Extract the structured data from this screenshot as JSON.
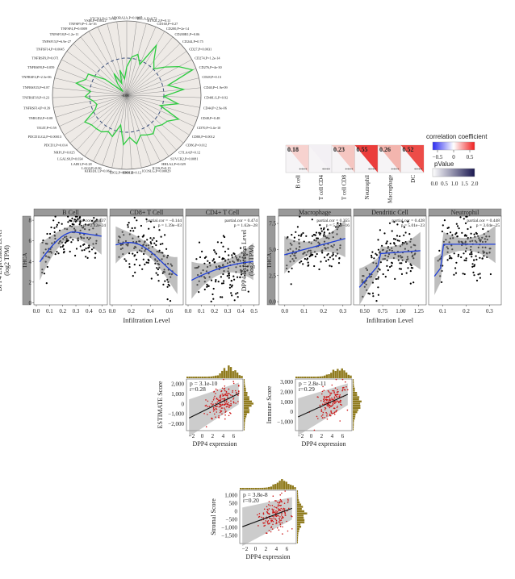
{
  "radar": {
    "center": "-0.08",
    "labels": [
      "ADORA2A,P=0.0097",
      "BTLA,P=0.73",
      "BTN2L2,P=0.11",
      "CD160,P=0.27",
      "CD200,P=2e-14",
      "CD200R1,P=0.06",
      "CD244,P=0.75",
      "CD27,P=0.0031",
      "CD274,P=1.2e-14",
      "CD276,P=4e-30",
      "CD28,P=0.13",
      "CD40,P=1.9e-09",
      "CD40LG,P=0.92",
      "CD44,P=2.9e-06",
      "CD48,P=0.48",
      "CD70,P=3.4e-10",
      "CD80,P=0.0012",
      "CD86,P=0.012",
      "CTLA4,P=0.12",
      "SUVCR2,P=0.0081",
      "HHLA2,P=0.029",
      "ICOS,P=0.15",
      "ICOSLG,P=0.00029",
      "IDO1,P=0.12",
      "IDO2,P=0.00012",
      "KIR3DL1,P=0.064",
      "LAG3,P=0.06",
      "LAIR1,P=0.28",
      "LGALS9,P=0.034",
      "NRP1,P=0.025",
      "PDCD1,P=0.014",
      "PDCD1LG2,P=0.00013",
      "TIGIT,P=0.59",
      "TMIGD2,P=0.08",
      "TNFRSF14,P=0.39",
      "TNFRSF18,P=0.23",
      "TNFRSF25,P=0.87",
      "TNFRSF4,P=2.3e-06",
      "TNFRSF8,P=0.059",
      "TNFRSF9,P=0.071",
      "TNFSF14,P=0.0045",
      "TNFSF15,P=6.9e-27",
      "TNFSF18,P=1.2e-11",
      "TNFSF4,P=0.0009",
      "TNFSF9,P=1.3e-16",
      "VSIR,P=0.0022",
      "VTCN1,P=2.7e-12"
    ],
    "values": [
      -0.12,
      0.02,
      0.07,
      -0.05,
      0.28,
      0.09,
      0.01,
      0.14,
      0.3,
      0.45,
      0.07,
      0.27,
      0,
      0.2,
      -0.03,
      0.27,
      0.15,
      0.12,
      0.07,
      0.13,
      0.1,
      0.07,
      0.17,
      0.07,
      0.17,
      -0.09,
      0.09,
      0.05,
      0.1,
      0.11,
      0.12,
      0.17,
      -0.03,
      -0.08,
      -0.04,
      0.06,
      -0.01,
      0.2,
      0.09,
      0.09,
      -0.14,
      -0.43,
      -0.3,
      -0.16,
      -0.33,
      -0.15,
      -0.28
    ],
    "scale_min": -0.5,
    "scale_max": 0.5,
    "line_color": "#2ecc40"
  },
  "heatmap": {
    "cells": [
      {
        "label": "B cell",
        "value": "0.18",
        "stars": "****",
        "color": "#f7d2cf"
      },
      {
        "label": "T cell CD4",
        "value": "",
        "stars": "****",
        "color": "#f3f0f4"
      },
      {
        "label": "T cell CD8",
        "value": "0.23",
        "stars": "****",
        "color": "#f5c6c1"
      },
      {
        "label": "Neutrophil",
        "value": "0.55",
        "stars": "****",
        "color": "#eb3d3b"
      },
      {
        "label": "Macrophage",
        "value": "0.26",
        "stars": "****",
        "color": "#f3b5ae"
      },
      {
        "label": "DC",
        "value": "0.52",
        "stars": "****",
        "color": "#ec4c48"
      }
    ],
    "legend_title": "correlation coefficient",
    "legend_ticks": [
      "−0.5",
      "0",
      "0.5"
    ],
    "pvalue_title": "pValue",
    "pvalue_ticks": [
      "0.0",
      "0.5",
      "1.0",
      "1.5",
      "2.0"
    ]
  },
  "timer": {
    "ylabel": "DPP4 Expression Level\n(log2 TPM)",
    "ylabel_l1": "DPP4 Expression Level",
    "ylabel_l2": "(log2 TPM)",
    "xlabel": "Infiltration Level",
    "cancer": "THCA",
    "left": {
      "yticks": [
        "0",
        "2",
        "4",
        "6",
        "8"
      ],
      "panels": [
        {
          "title": "B Cell",
          "cor": "partial.cor = 0.437",
          "p": "p = 2.42e-24",
          "xticks": [
            "0.0",
            "0.1",
            "0.2",
            "0.3",
            "0.4",
            "0.5"
          ]
        },
        {
          "title": "CD8+ T Cell",
          "cor": "partial.cor = −0.144",
          "p": "p = 1.39e−03",
          "xticks": [
            "0.0",
            "0.2",
            "0.4",
            "0.6"
          ]
        },
        {
          "title": "CD4+ T Cell",
          "cor": "partial.cor = 0.474",
          "p": "p = 1.62e−28",
          "xticks": [
            "0.0",
            "0.1",
            "0.2",
            "0.3",
            "0.4",
            "0.5"
          ]
        }
      ]
    },
    "right": {
      "yticks": [
        "0.0",
        "2.5",
        "5.0",
        "7.5"
      ],
      "panels": [
        {
          "title": "Macrophage",
          "cor": "partial.cor = 0.355",
          "p": "p = 5.68e−16",
          "xticks": [
            "0.0",
            "0.1",
            "0.2",
            "0.3"
          ]
        },
        {
          "title": "Dendritic Cell",
          "cor": "partial.cor = 0.428",
          "p": "p = 5.01e−23",
          "xticks": [
            "0.50",
            "0.75",
            "1.00",
            "1.25"
          ]
        },
        {
          "title": "Neutrophil",
          "cor": "partial.cor = 0.448",
          "p": "p = 3.04e−25",
          "xticks": [
            "0.1",
            "0.2",
            "0.3"
          ]
        }
      ]
    }
  },
  "estimate": [
    {
      "ylabel": "ESTIMATE Score",
      "p": "p = 3.1e-10",
      "r": "r=0.28",
      "yticks": [
        "−2,000",
        "−1,000",
        "0",
        "1,000",
        "2,000"
      ],
      "xticks": [
        "−2",
        "0",
        "2",
        "4",
        "6"
      ],
      "xlabel": "DPP4 expression"
    },
    {
      "ylabel": "Immune Score",
      "p": "p = 2.8e-11",
      "r": "r=0.29",
      "yticks": [
        "−1,000",
        "0",
        "1,000",
        "2,000",
        "3,000"
      ],
      "xticks": [
        "−2",
        "0",
        "2",
        "4",
        "6"
      ],
      "xlabel": "DPP4 expression"
    },
    {
      "ylabel": "Stromal Score",
      "p": "p = 3.8e-8",
      "r": "r=0.20",
      "yticks": [
        "−1,500",
        "−1,000",
        "−500",
        "0",
        "500",
        "1,000"
      ],
      "xticks": [
        "−2",
        "0",
        "2",
        "4",
        "6"
      ],
      "xlabel": "DPP4 expression"
    }
  ]
}
